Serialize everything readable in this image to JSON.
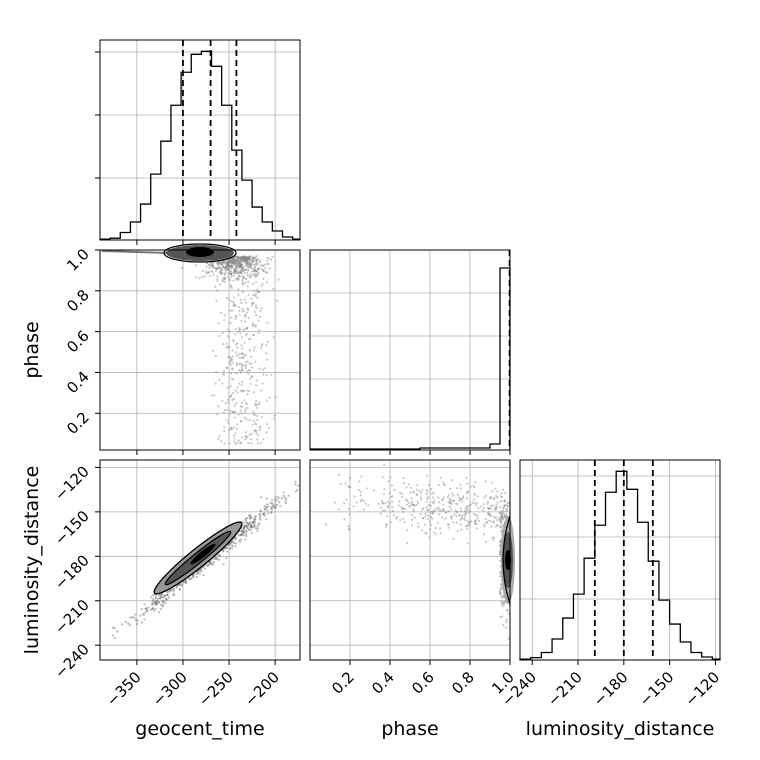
{
  "chart_data": [
    {
      "panel": "geocent_time marginal",
      "type": "histogram",
      "xlabel": "",
      "ylabel": "",
      "xlim": [
        -390,
        -173
      ],
      "bin_edges": [
        -390,
        -379,
        -368,
        -357,
        -346,
        -335,
        -324,
        -313,
        -302,
        -291,
        -280,
        -269,
        -258,
        -247,
        -236,
        -225,
        -214,
        -203,
        -192,
        -181,
        -173
      ],
      "counts": [
        0.3,
        0.6,
        2.5,
        6,
        12,
        22,
        33,
        45,
        56,
        62,
        63,
        58,
        45,
        30,
        20,
        11,
        6,
        3,
        1,
        0.3
      ],
      "quantiles": [
        -300,
        -270,
        -242
      ]
    },
    {
      "panel": "phase vs geocent_time",
      "type": "scatter",
      "xlabel": "",
      "ylabel": "phase",
      "xlim": [
        -390,
        -173
      ],
      "ylim": [
        0.02,
        1.0
      ],
      "yticks": [
        "0.2",
        "0.4",
        "0.6",
        "0.8",
        "1.0"
      ]
    },
    {
      "panel": "phase marginal",
      "type": "histogram",
      "xlabel": "",
      "ylabel": "",
      "xlim": [
        0.0,
        1.0
      ],
      "quantiles": [
        0.998
      ]
    },
    {
      "panel": "luminosity_distance vs geocent_time",
      "type": "scatter",
      "xlabel": "geocent_time",
      "ylabel": "luminosity_distance",
      "xlim": [
        -390,
        -173
      ],
      "ylim": [
        -250,
        -115
      ],
      "xticks": [
        "−350",
        "−300",
        "−250",
        "−200"
      ],
      "yticks": [
        "−120",
        "−150",
        "−180",
        "−210",
        "−240"
      ]
    },
    {
      "panel": "luminosity_distance vs phase",
      "type": "scatter",
      "xlabel": "phase",
      "ylabel": "",
      "xlim": [
        0.0,
        1.0
      ],
      "ylim": [
        -250,
        -115
      ],
      "xticks": [
        "0.2",
        "0.4",
        "0.6",
        "0.8",
        "1.0"
      ]
    },
    {
      "panel": "luminosity_distance marginal",
      "type": "histogram",
      "xlabel": "luminosity_distance",
      "ylabel": "",
      "xlim": [
        -248,
        -117
      ],
      "xticks": [
        "−240",
        "−210",
        "−180",
        "−150",
        "−120"
      ],
      "bin_edges": [
        -248,
        -241,
        -234,
        -227,
        -220,
        -213,
        -206,
        -199,
        -192,
        -185,
        -178,
        -171,
        -164,
        -157,
        -150,
        -143,
        -136,
        -129,
        -122,
        -117
      ],
      "counts": [
        0.3,
        0.8,
        2.5,
        7,
        14,
        22,
        34,
        45,
        56,
        63,
        57,
        46,
        33,
        20,
        12,
        6,
        2.5,
        1,
        0.3
      ],
      "quantiles": [
        -199,
        -180,
        -161
      ]
    }
  ]
}
